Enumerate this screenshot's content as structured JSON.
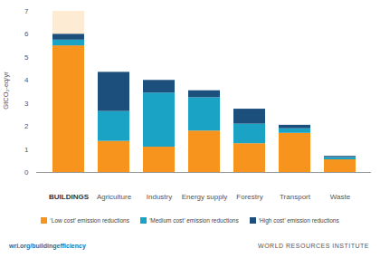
{
  "chart_data": {
    "type": "bar",
    "stacked": true,
    "y_label": "GtCO₂-eq/yr",
    "categories": [
      "BUILDINGS",
      "Agriculture",
      "Industry",
      "Energy supply",
      "Forestry",
      "Transport",
      "Waste"
    ],
    "series": [
      {
        "name": "‘Low cost’ emission reductions",
        "color": "#f7941d",
        "values": [
          5.5,
          1.35,
          1.1,
          1.8,
          1.25,
          1.7,
          0.55
        ]
      },
      {
        "name": "‘Medium cost’ emission reductions",
        "color": "#1ba3c6",
        "values": [
          0.25,
          1.3,
          2.35,
          1.45,
          0.85,
          0.2,
          0.1
        ]
      },
      {
        "name": "‘High cost’ emission reductions",
        "color": "#1d4f7c",
        "values": [
          0.25,
          1.7,
          0.55,
          0.3,
          0.65,
          0.15,
          0.05
        ]
      }
    ],
    "ylim": [
      0,
      7
    ],
    "yticks": [
      0,
      1,
      2,
      3,
      4,
      5,
      6,
      7
    ],
    "grid": false,
    "legend": "bottom",
    "annotations": [
      "wri.org/buildingefficiency",
      "WORLD RESOURCES INSTITUTE"
    ]
  }
}
